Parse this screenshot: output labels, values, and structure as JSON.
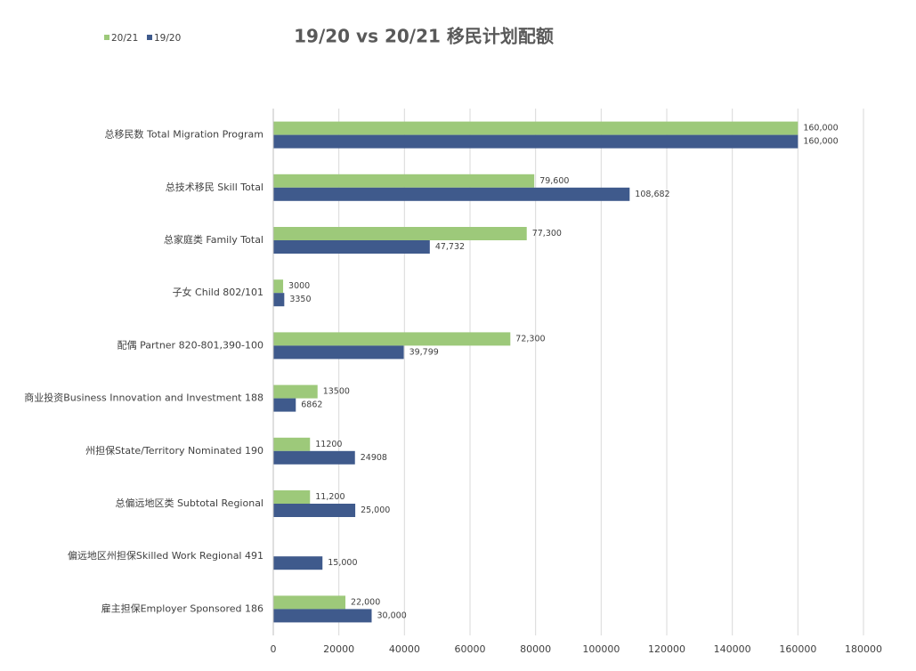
{
  "chart_data": {
    "type": "bar",
    "orientation": "horizontal",
    "title": "19/20 vs 20/21 移民计划配额",
    "categories": [
      "总移民数 Total Migration Program",
      "总技术移民 Skill Total",
      "总家庭类 Family Total",
      "子女 Child 802/101",
      "配偶 Partner 820-801,390-100",
      "商业投资Business Innovation and Investment 188",
      "州担保State/Territory Nominated 190",
      "总偏远地区类 Subtotal Regional",
      "偏远地区州担保Skilled Work Regional 491",
      "雇主担保Employer Sponsored 186"
    ],
    "series": [
      {
        "name": "20/21",
        "color": "#9dc97a",
        "values": [
          160000,
          79600,
          77300,
          3000,
          72300,
          13500,
          11200,
          11200,
          null,
          22000
        ],
        "value_labels": [
          "160,000",
          "79,600",
          "77,300",
          "3000",
          "72,300",
          "13500",
          "11200",
          "11,200",
          null,
          "22,000"
        ]
      },
      {
        "name": "19/20",
        "color": "#3f5a8c",
        "values": [
          160000,
          108682,
          47732,
          3350,
          39799,
          6862,
          24908,
          25000,
          15000,
          30000
        ],
        "value_labels": [
          "160,000",
          "108,682",
          "47,732",
          "3350",
          "39,799",
          "6862",
          "24908",
          "25,000",
          "15,000",
          "30,000"
        ]
      }
    ],
    "xlim": [
      0,
      180000
    ],
    "xticks": [
      0,
      20000,
      40000,
      60000,
      80000,
      100000,
      120000,
      140000,
      160000,
      180000
    ],
    "grid": true,
    "legend": "top-left"
  }
}
